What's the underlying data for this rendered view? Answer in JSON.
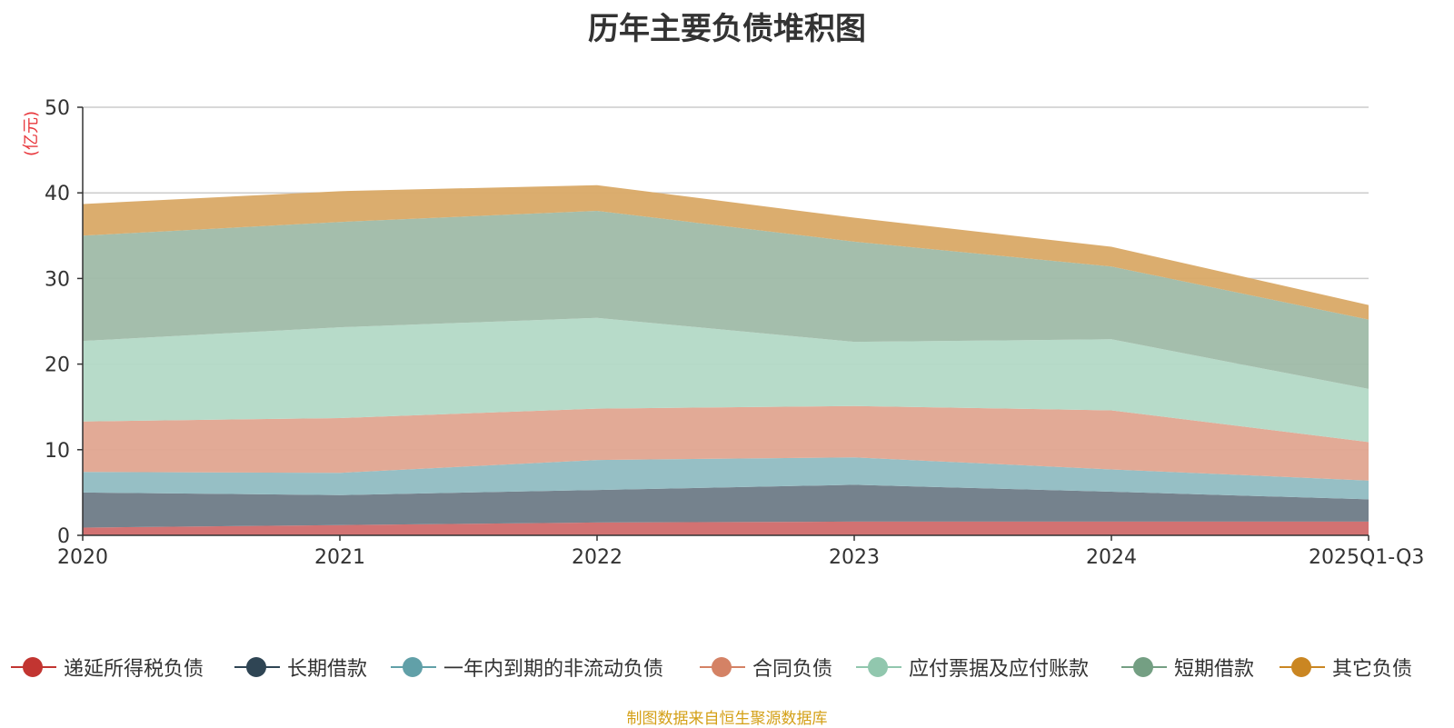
{
  "chart_data": {
    "type": "area",
    "stacked": true,
    "title": "历年主要负债堆积图",
    "ylabel": "(亿元)",
    "ylim": [
      0,
      50
    ],
    "yticks": [
      0,
      10,
      20,
      30,
      40,
      50
    ],
    "grid": true,
    "categories": [
      "2020",
      "2021",
      "2022",
      "2023",
      "2024",
      "2025Q1-Q3"
    ],
    "series": [
      {
        "name": "递延所得税负债",
        "color": "#c23531",
        "fill": "#d06a6a",
        "values": [
          0.9,
          1.2,
          1.5,
          1.6,
          1.6,
          1.6
        ]
      },
      {
        "name": "长期借款",
        "color": "#2f4554",
        "fill": "#6e7b87",
        "values": [
          4.1,
          3.5,
          3.8,
          4.3,
          3.5,
          2.6
        ]
      },
      {
        "name": "一年内到期的非流动负债",
        "color": "#61a0a8",
        "fill": "#90bcc2",
        "values": [
          2.4,
          2.6,
          3.5,
          3.2,
          2.6,
          2.2
        ]
      },
      {
        "name": "合同负债",
        "color": "#d48265",
        "fill": "#e0a590",
        "values": [
          5.9,
          6.4,
          6.0,
          6.0,
          6.9,
          4.5
        ]
      },
      {
        "name": "应付票据及应付账款",
        "color": "#91c7ae",
        "fill": "#b3d9c6",
        "values": [
          9.4,
          10.6,
          10.6,
          7.5,
          8.3,
          6.2
        ]
      },
      {
        "name": "短期借款",
        "color": "#749f83",
        "fill": "#9fbba8",
        "values": [
          12.3,
          12.3,
          12.5,
          11.7,
          8.5,
          8.1
        ]
      },
      {
        "name": "其它负债",
        "color": "#ca8622",
        "fill": "#d9a966",
        "values": [
          3.7,
          3.6,
          3.0,
          2.8,
          2.3,
          1.7
        ]
      }
    ]
  },
  "source_note": "制图数据来自恒生聚源数据库"
}
